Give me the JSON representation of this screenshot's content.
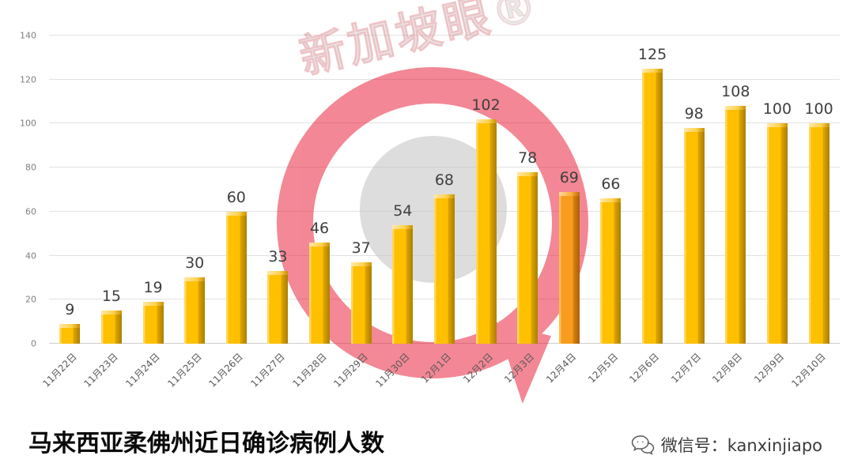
{
  "chart_data": {
    "type": "bar",
    "title": "马来西亚柔佛州近日确诊病例人数",
    "categories": [
      "11月22日",
      "11月23日",
      "11月24日",
      "11月25日",
      "11月26日",
      "11月27日",
      "11月28日",
      "11月29日",
      "11月30日",
      "12月1日",
      "12月2日",
      "12月3日",
      "12月4日",
      "12月5日",
      "12月6日",
      "12月7日",
      "12月8日",
      "12月9日",
      "12月10日"
    ],
    "values": [
      9,
      15,
      19,
      30,
      60,
      33,
      46,
      37,
      54,
      68,
      102,
      78,
      69,
      66,
      125,
      98,
      108,
      100,
      100
    ],
    "ylim": [
      0,
      140
    ],
    "yticks": [
      0,
      20,
      40,
      60,
      80,
      100,
      120,
      140
    ],
    "grid": true,
    "legend": "none",
    "xlabel": "",
    "ylabel": "",
    "bar_color": "#FFC000",
    "bar_color_dark": "#A97F00",
    "bar_color_light": "#FFD75E",
    "highlight_index": 12,
    "highlight_color": "#F79C1D"
  },
  "watermark": {
    "text": "新加坡眼®",
    "text_color": "#CDCDCD",
    "ring_color": "#E8112D",
    "inner_color": "#BDBDBD"
  },
  "footer": {
    "title": "马来西亚柔佛州近日确诊病例人数",
    "wechat_label": "微信号：kanxinjiapo"
  }
}
